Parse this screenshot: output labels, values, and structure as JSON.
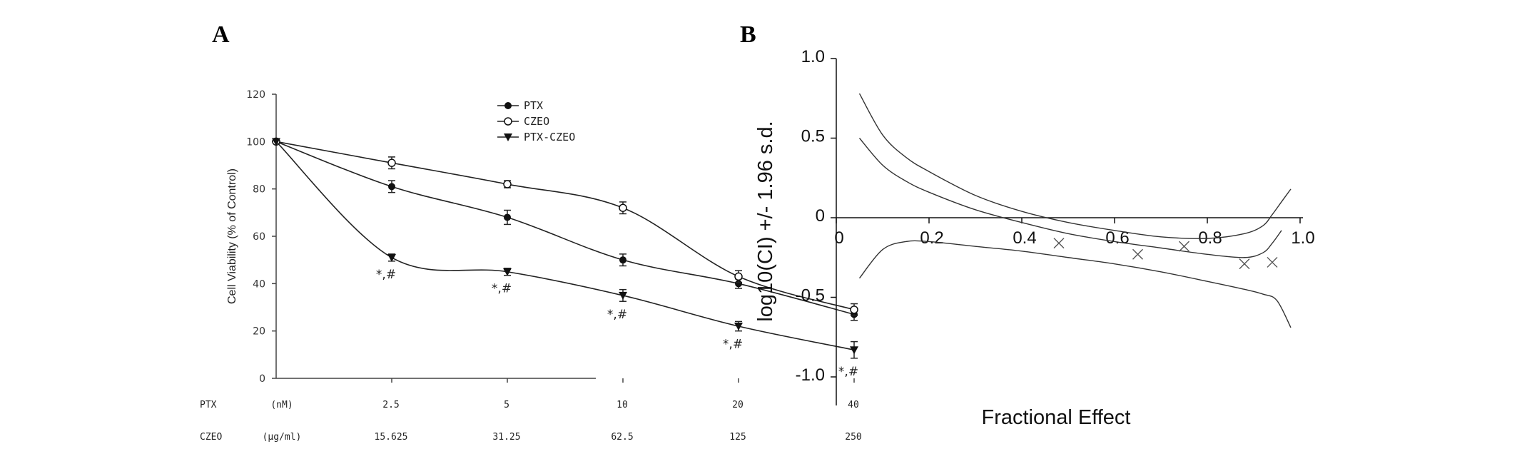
{
  "chart_data": [
    {
      "panel": "A",
      "type": "line",
      "ylabel": "Cell Viability (% of Control)",
      "ylim": [
        0,
        120
      ],
      "yticks": [
        "0",
        "20",
        "40",
        "60",
        "80",
        "100",
        "120"
      ],
      "x_index": [
        0,
        1,
        2,
        3,
        4,
        5
      ],
      "category_rows": [
        {
          "name": "PTX",
          "unit": "(nM)",
          "labels": [
            "2.5",
            "5",
            "10",
            "20",
            "40"
          ]
        },
        {
          "name": "CZEO",
          "unit": "(μg/ml)",
          "labels": [
            "15.625",
            "31.25",
            "62.5",
            "125",
            "250"
          ]
        }
      ],
      "series": [
        {
          "name": "PTX",
          "marker": "filled-circle",
          "values": [
            100,
            81,
            68,
            50,
            40,
            27
          ],
          "errors": [
            0,
            2.5,
            3,
            2.5,
            2,
            2.5
          ]
        },
        {
          "name": "CZEO",
          "marker": "open-circle",
          "values": [
            100,
            91,
            82,
            72,
            43,
            29
          ],
          "errors": [
            0,
            2.5,
            1.5,
            2.5,
            2.5,
            2.5
          ]
        },
        {
          "name": "PTX-CZEO",
          "marker": "filled-triangle",
          "values": [
            100,
            51,
            45,
            35,
            22,
            12
          ],
          "errors": [
            0,
            1.5,
            1.5,
            2.5,
            2,
            3.5
          ]
        }
      ],
      "annotations": [
        "*,#",
        "*,#",
        "*,#",
        "*,#",
        "*,#"
      ],
      "legend_position": "top-right"
    },
    {
      "panel": "B",
      "type": "line",
      "xlabel": "Fractional Effect",
      "ylabel": "log10(CI) +/- 1.96 s.d.",
      "xlim": [
        0,
        1
      ],
      "ylim": [
        -1.2,
        1
      ],
      "xticks": [
        "0",
        "0.2",
        "0.4",
        "0.6",
        "0.8",
        "1.0"
      ],
      "yticks": [
        "1.0",
        "0.5",
        "0",
        "-0.5",
        "-1.0"
      ],
      "lines": [
        {
          "role": "upper",
          "x": [
            0.05,
            0.1,
            0.15,
            0.2,
            0.3,
            0.4,
            0.5,
            0.6,
            0.7,
            0.8,
            0.88,
            0.92,
            0.94,
            0.96,
            0.98
          ],
          "y": [
            0.78,
            0.52,
            0.38,
            0.29,
            0.14,
            0.04,
            -0.03,
            -0.08,
            -0.12,
            -0.13,
            -0.1,
            -0.05,
            0.02,
            0.1,
            0.18
          ]
        },
        {
          "role": "center",
          "x": [
            0.05,
            0.1,
            0.15,
            0.2,
            0.3,
            0.4,
            0.5,
            0.6,
            0.7,
            0.8,
            0.88,
            0.92,
            0.94,
            0.96
          ],
          "y": [
            0.5,
            0.33,
            0.23,
            0.16,
            0.05,
            -0.03,
            -0.1,
            -0.15,
            -0.19,
            -0.23,
            -0.25,
            -0.22,
            -0.16,
            -0.08
          ]
        },
        {
          "role": "lower",
          "x": [
            0.05,
            0.1,
            0.15,
            0.2,
            0.3,
            0.4,
            0.5,
            0.6,
            0.7,
            0.8,
            0.88,
            0.92,
            0.95,
            0.98
          ],
          "y": [
            -0.38,
            -0.2,
            -0.15,
            -0.15,
            -0.18,
            -0.21,
            -0.25,
            -0.29,
            -0.34,
            -0.4,
            -0.45,
            -0.48,
            -0.52,
            -0.69
          ]
        }
      ],
      "points": [
        {
          "x": 0.48,
          "y": -0.16
        },
        {
          "x": 0.65,
          "y": -0.23
        },
        {
          "x": 0.75,
          "y": -0.18
        },
        {
          "x": 0.88,
          "y": -0.29
        },
        {
          "x": 0.94,
          "y": -0.28
        }
      ]
    }
  ]
}
